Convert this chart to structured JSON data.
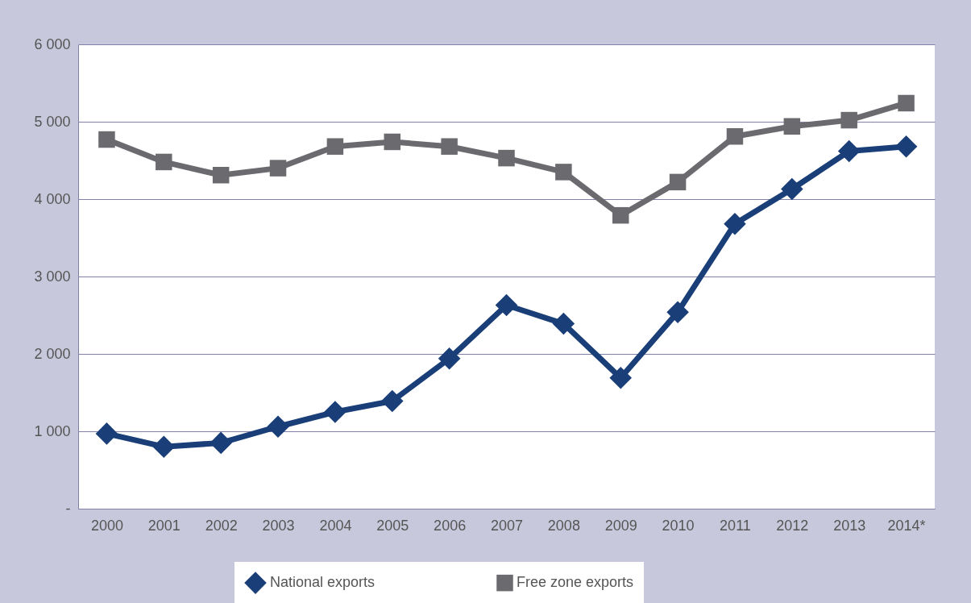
{
  "chart_data": {
    "type": "line",
    "categories": [
      "2000",
      "2001",
      "2002",
      "2003",
      "2004",
      "2005",
      "2006",
      "2007",
      "2008",
      "2009",
      "2010",
      "2011",
      "2012",
      "2013",
      "2014*"
    ],
    "series": [
      {
        "name": "National exports",
        "color": "#1a3f78",
        "marker": "diamond",
        "values": [
          970,
          800,
          850,
          1060,
          1250,
          1390,
          1940,
          2630,
          2390,
          1690,
          2540,
          3680,
          4130,
          4620,
          4680
        ]
      },
      {
        "name": "Free zone exports",
        "color": "#6b6b6f",
        "marker": "square",
        "values": [
          4770,
          4480,
          4310,
          4400,
          4680,
          4740,
          4680,
          4530,
          4350,
          3790,
          4220,
          4810,
          4940,
          5020,
          5240
        ]
      }
    ],
    "ylim": [
      0,
      6000
    ],
    "yticks": [
      {
        "value": 0,
        "label": "-"
      },
      {
        "value": 1000,
        "label": "1 000"
      },
      {
        "value": 2000,
        "label": "2 000"
      },
      {
        "value": 3000,
        "label": "3 000"
      },
      {
        "value": 4000,
        "label": "4 000"
      },
      {
        "value": 5000,
        "label": "5 000"
      },
      {
        "value": 6000,
        "label": "6 000"
      }
    ],
    "grid": "y",
    "legend": "bottom",
    "line_style": "solid"
  }
}
